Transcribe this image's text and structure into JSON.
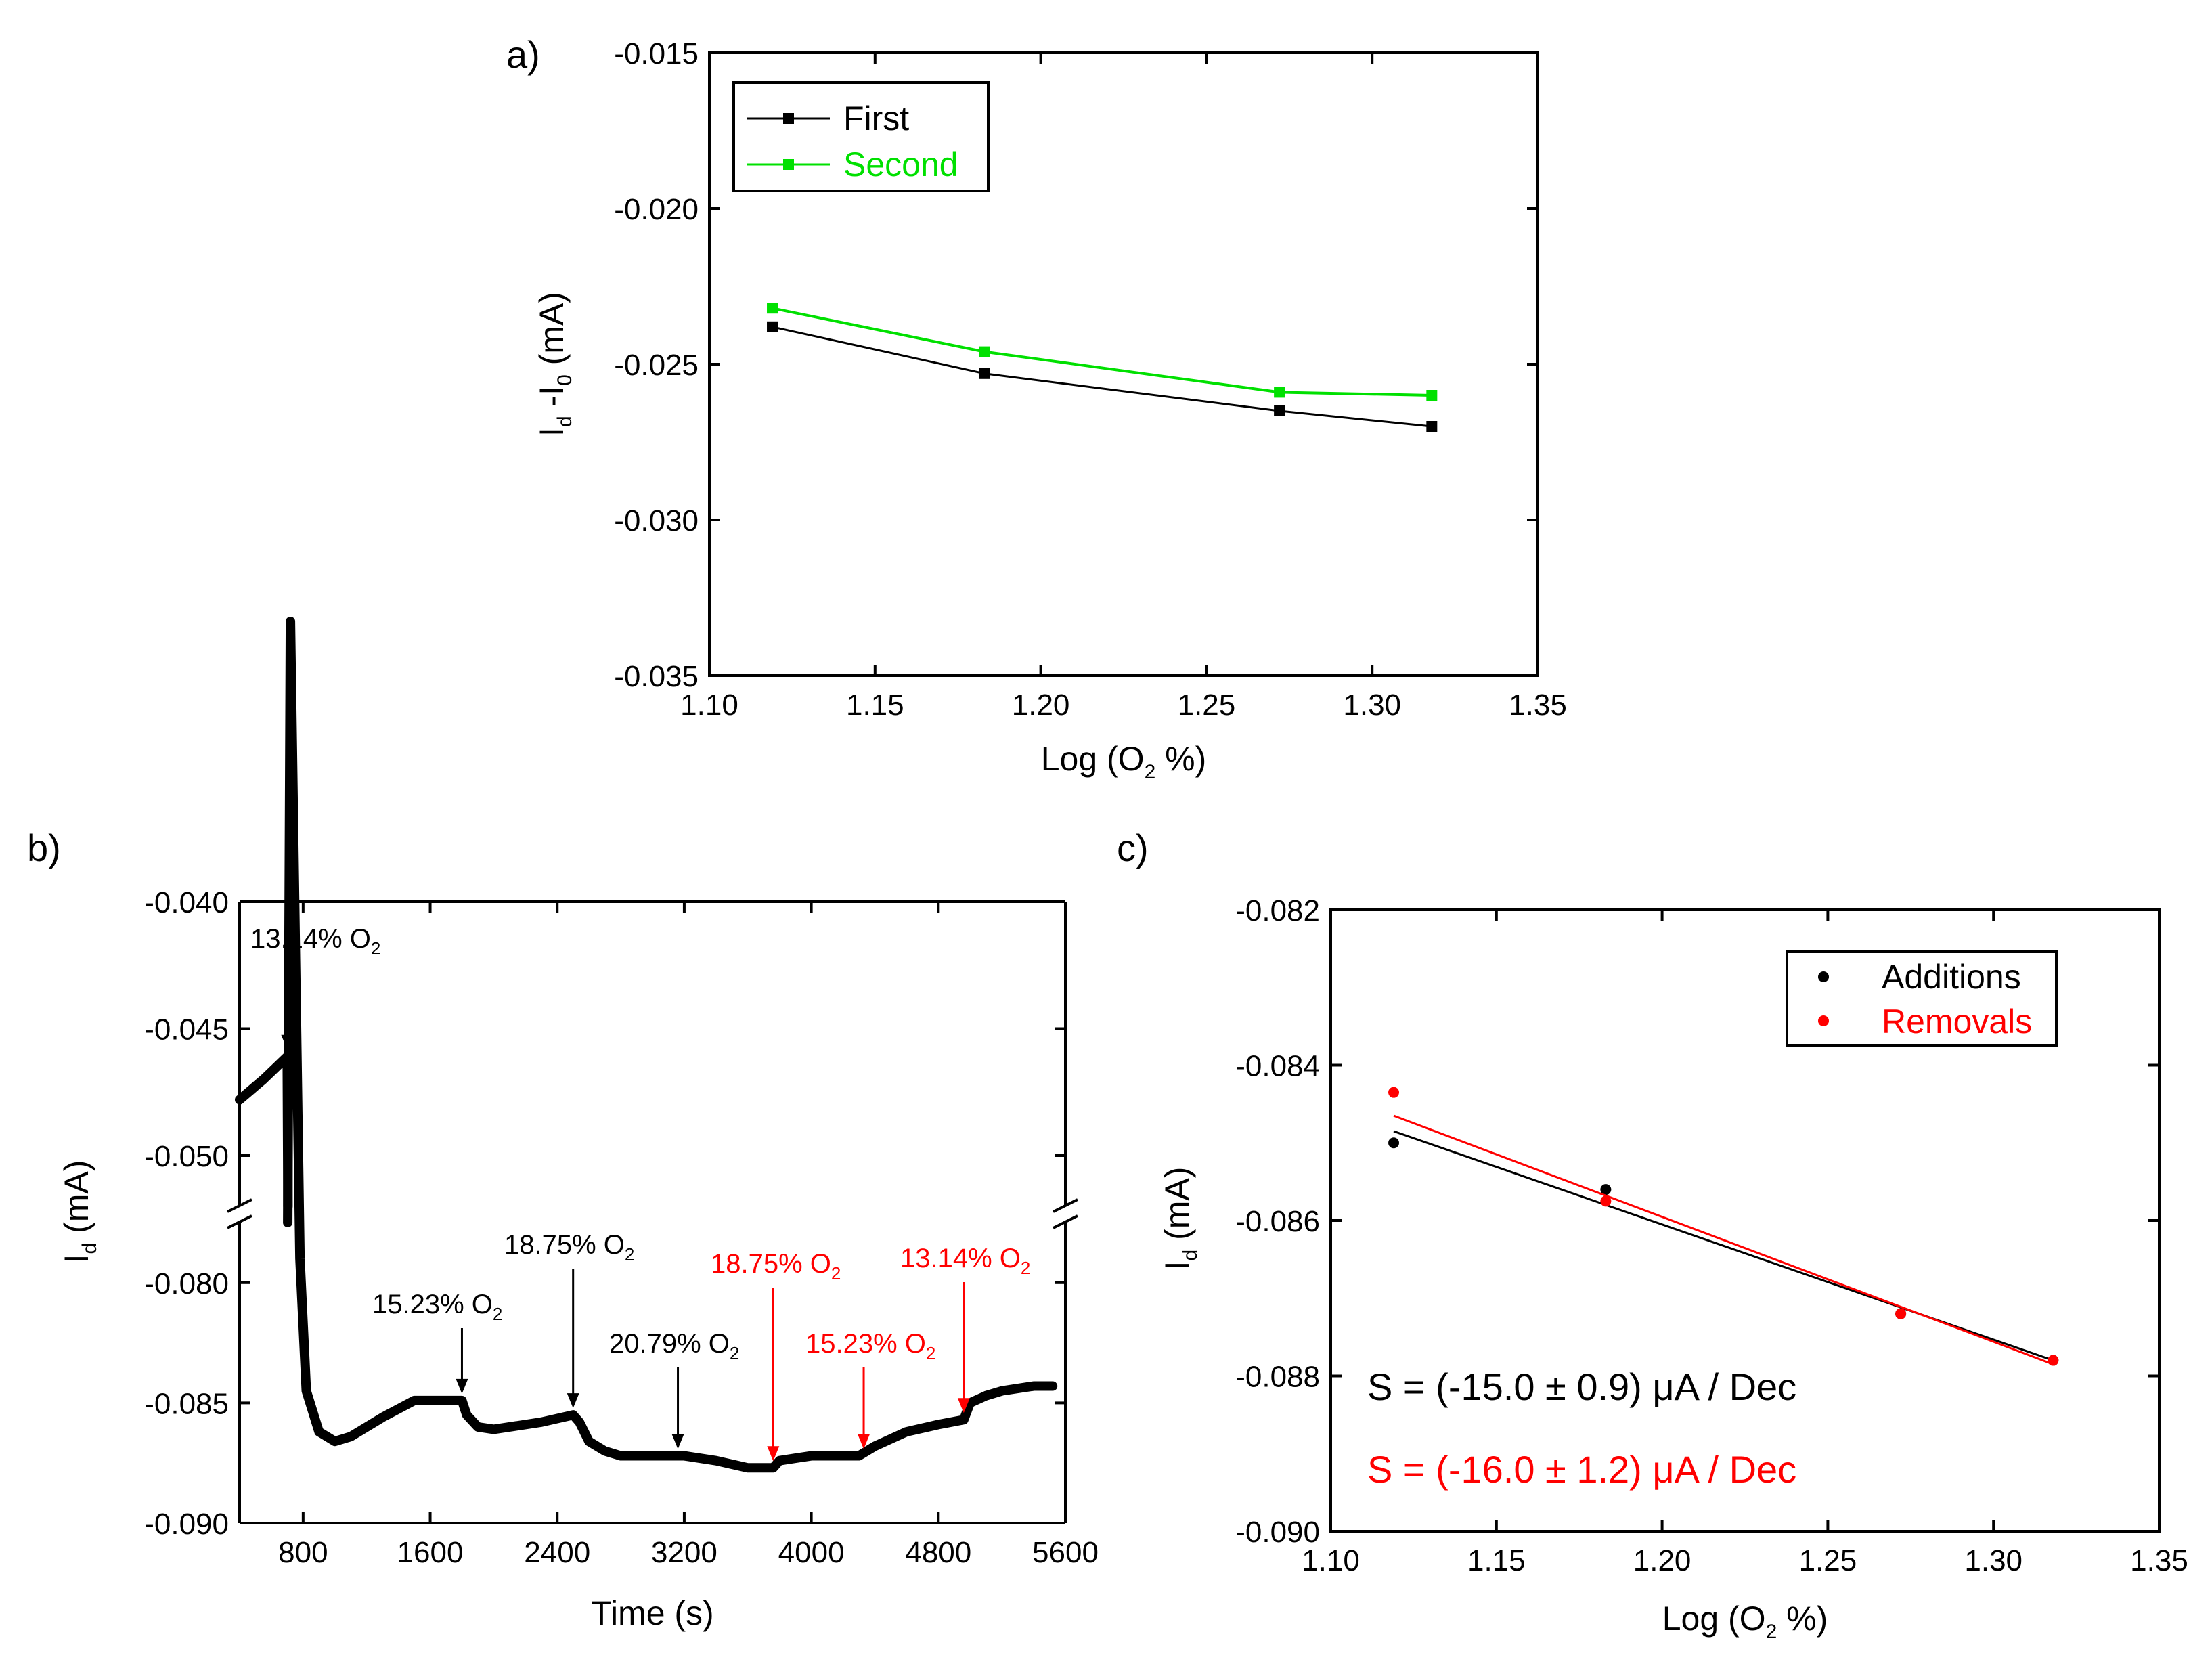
{
  "colors": {
    "black": "#000000",
    "green": "#00e000",
    "red": "#ff0000"
  },
  "chart_data": [
    {
      "panel_label": "a)",
      "type": "line",
      "xlabel": {
        "main": "Log (O",
        "sub": "2",
        "tail": " %)"
      },
      "ylabel": {
        "a": "I",
        "a_sub": "d",
        "b": " -I",
        "b_sub": "0",
        "tail": " (mA)"
      },
      "xlim": [
        1.1,
        1.35
      ],
      "ylim": [
        -0.035,
        -0.015
      ],
      "xticks": [
        1.1,
        1.15,
        1.2,
        1.25,
        1.3,
        1.35
      ],
      "xtick_labels": [
        "1.10",
        "1.15",
        "1.20",
        "1.25",
        "1.30",
        "1.35"
      ],
      "yticks": [
        -0.035,
        -0.03,
        -0.025,
        -0.02,
        -0.015
      ],
      "ytick_labels": [
        "-0.035",
        "-0.030",
        "-0.025",
        "-0.020",
        "-0.015"
      ],
      "legend_position": "top-left",
      "series": [
        {
          "name": "First",
          "color": "#000000",
          "x": [
            1.119,
            1.183,
            1.272,
            1.318
          ],
          "y": [
            -0.0238,
            -0.0253,
            -0.0265,
            -0.027
          ]
        },
        {
          "name": "Second",
          "color": "#00e000",
          "x": [
            1.119,
            1.183,
            1.272,
            1.318
          ],
          "y": [
            -0.0232,
            -0.0246,
            -0.0259,
            -0.026
          ]
        }
      ]
    },
    {
      "panel_label": "b)",
      "type": "line",
      "xlabel": "Time (s)",
      "ylabel": {
        "a": "I",
        "a_sub": "d",
        "tail": " (mA)"
      },
      "xlim": [
        400,
        5600
      ],
      "axis_break": true,
      "ylim_upper": [
        -0.052,
        -0.04
      ],
      "ylim_lower": [
        -0.09,
        -0.0775
      ],
      "xticks": [
        800,
        1600,
        2400,
        3200,
        4000,
        4800,
        5600
      ],
      "xtick_labels": [
        "800",
        "1600",
        "2400",
        "3200",
        "4000",
        "4800",
        "5600"
      ],
      "yticks_upper": [
        -0.05,
        -0.045,
        -0.04
      ],
      "ytick_labels_upper": [
        "-0.050",
        "-0.045",
        "-0.040"
      ],
      "yticks_lower": [
        -0.09,
        -0.085,
        -0.08
      ],
      "ytick_labels_lower": [
        "-0.090",
        "-0.085",
        "-0.080"
      ],
      "series": [
        {
          "color": "#000000",
          "x": [
            400,
            550,
            700,
            720,
            780,
            820,
            900,
            1000,
            1100,
            1300,
            1500,
            1640,
            1800,
            1830,
            1900,
            2000,
            2300,
            2500,
            2540,
            2600,
            2700,
            2800,
            3000,
            3200,
            3400,
            3600,
            3760,
            3800,
            3900,
            4000,
            4300,
            4400,
            4600,
            4800,
            4960,
            5000,
            5100,
            5200,
            5400,
            5520
          ],
          "y": [
            -0.0478,
            -0.047,
            -0.0461,
            -0.0525,
            -0.079,
            -0.0845,
            -0.0862,
            -0.0866,
            -0.0864,
            -0.0856,
            -0.0849,
            -0.0849,
            -0.0849,
            -0.0855,
            -0.086,
            -0.0861,
            -0.0858,
            -0.0855,
            -0.0858,
            -0.0866,
            -0.087,
            -0.0872,
            -0.0872,
            -0.0872,
            -0.0874,
            -0.0877,
            -0.0877,
            -0.0874,
            -0.0873,
            -0.0872,
            -0.0872,
            -0.0868,
            -0.0862,
            -0.0859,
            -0.0857,
            -0.085,
            -0.0847,
            -0.0845,
            -0.0843,
            -0.0843
          ]
        }
      ],
      "annotations": [
        {
          "text": "13.14% O",
          "sub": "2",
          "color": "#000000",
          "x": 700,
          "y": -0.0461
        },
        {
          "text": "15.23% O",
          "sub": "2",
          "color": "#000000",
          "x": 1800,
          "y": -0.0849
        },
        {
          "text": "18.75% O",
          "sub": "2",
          "color": "#000000",
          "x": 2500,
          "y": -0.0855
        },
        {
          "text": "20.79% O",
          "sub": "2",
          "color": "#000000",
          "x": 3160,
          "y": -0.0872
        },
        {
          "text": "18.75% O",
          "sub": "2",
          "color": "#ff0000",
          "x": 3760,
          "y": -0.0877
        },
        {
          "text": "15.23% O",
          "sub": "2",
          "color": "#ff0000",
          "x": 4330,
          "y": -0.0872
        },
        {
          "text": "13.14% O",
          "sub": "2",
          "color": "#ff0000",
          "x": 4960,
          "y": -0.0857
        }
      ]
    },
    {
      "panel_label": "c)",
      "type": "scatter",
      "xlabel": {
        "main": "Log (O",
        "sub": "2",
        "tail": " %)"
      },
      "ylabel": {
        "a": "I",
        "a_sub": "d",
        "tail": " (mA)"
      },
      "xlim": [
        1.1,
        1.35
      ],
      "ylim": [
        -0.09,
        -0.082
      ],
      "xticks": [
        1.1,
        1.15,
        1.2,
        1.25,
        1.3,
        1.35
      ],
      "xtick_labels": [
        "1.10",
        "1.15",
        "1.20",
        "1.25",
        "1.30",
        "1.35"
      ],
      "yticks": [
        -0.09,
        -0.088,
        -0.086,
        -0.084,
        -0.082
      ],
      "ytick_labels": [
        "-0.090",
        "-0.088",
        "-0.086",
        "-0.084",
        "-0.082"
      ],
      "legend_position": "top-right",
      "series": [
        {
          "name": "Additions",
          "color": "#000000",
          "x": [
            1.119,
            1.183,
            1.272,
            1.318
          ],
          "y": [
            -0.085,
            -0.0856,
            -0.0872,
            -0.0878
          ],
          "fit": {
            "x": [
              1.119,
              1.318
            ],
            "y": [
              -0.08485,
              -0.0878
            ]
          }
        },
        {
          "name": "Removals",
          "color": "#ff0000",
          "x": [
            1.119,
            1.183,
            1.272,
            1.318
          ],
          "y": [
            -0.08435,
            -0.08575,
            -0.0872,
            -0.0878
          ],
          "fit": {
            "x": [
              1.119,
              1.318
            ],
            "y": [
              -0.08465,
              -0.08785
            ]
          }
        }
      ],
      "annotations": [
        {
          "text": "S = (-15.0 ± 0.9) μA / Dec",
          "color": "#000000"
        },
        {
          "text": "S = (-16.0 ± 1.2) μA / Dec",
          "color": "#ff0000"
        }
      ]
    }
  ]
}
